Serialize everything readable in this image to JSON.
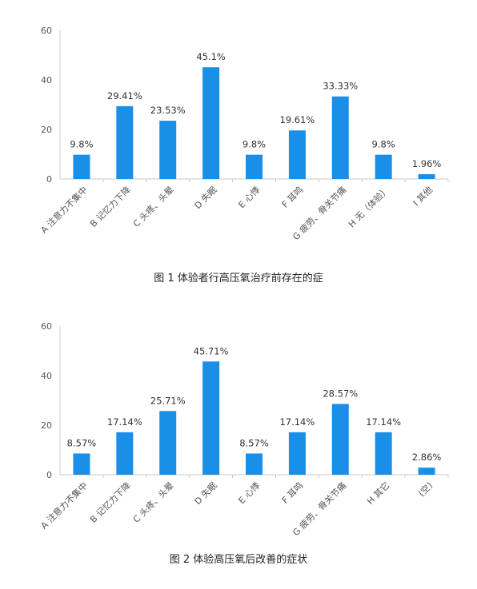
{
  "chart_data": [
    {
      "type": "bar",
      "categories": [
        "A 注意力不集中",
        "B 记忆力下降",
        "C 头疼、头晕",
        "D 失眠",
        "E 心悸",
        "F 耳鸣",
        "G 疲劳、骨关节痛",
        "H 无（体验）",
        "I 其他"
      ],
      "values": [
        9.8,
        29.41,
        23.53,
        45.1,
        9.8,
        19.61,
        33.33,
        9.8,
        1.96
      ],
      "data_labels": [
        "9.8%",
        "29.41%",
        "23.53%",
        "45.1%",
        "9.8%",
        "19.61%",
        "33.33%",
        "9.8%",
        "1.96%"
      ],
      "ylim": [
        0,
        60
      ],
      "yticks": [
        "0",
        "20",
        "40",
        "60"
      ],
      "grid": false,
      "bar_color": "#1a8fe8",
      "caption": "图 1 体验者行高压氧治疗前存在的症"
    },
    {
      "type": "bar",
      "categories": [
        "A 注意力不集中",
        "B 记忆力下降",
        "C 头疼、头晕",
        "D 失眠",
        "E 心悸",
        "F 耳鸣",
        "G 疲劳、骨关节痛",
        "H 其它",
        "(空)"
      ],
      "values": [
        8.57,
        17.14,
        25.71,
        45.71,
        8.57,
        17.14,
        28.57,
        17.14,
        2.86
      ],
      "data_labels": [
        "8.57%",
        "17.14%",
        "25.71%",
        "45.71%",
        "8.57%",
        "17.14%",
        "28.57%",
        "17.14%",
        "2.86%"
      ],
      "ylim": [
        0,
        60
      ],
      "yticks": [
        "0",
        "20",
        "40",
        "60"
      ],
      "grid": false,
      "bar_color": "#1a8fe8",
      "caption": "图 2 体验高压氧后改善的症状"
    }
  ]
}
